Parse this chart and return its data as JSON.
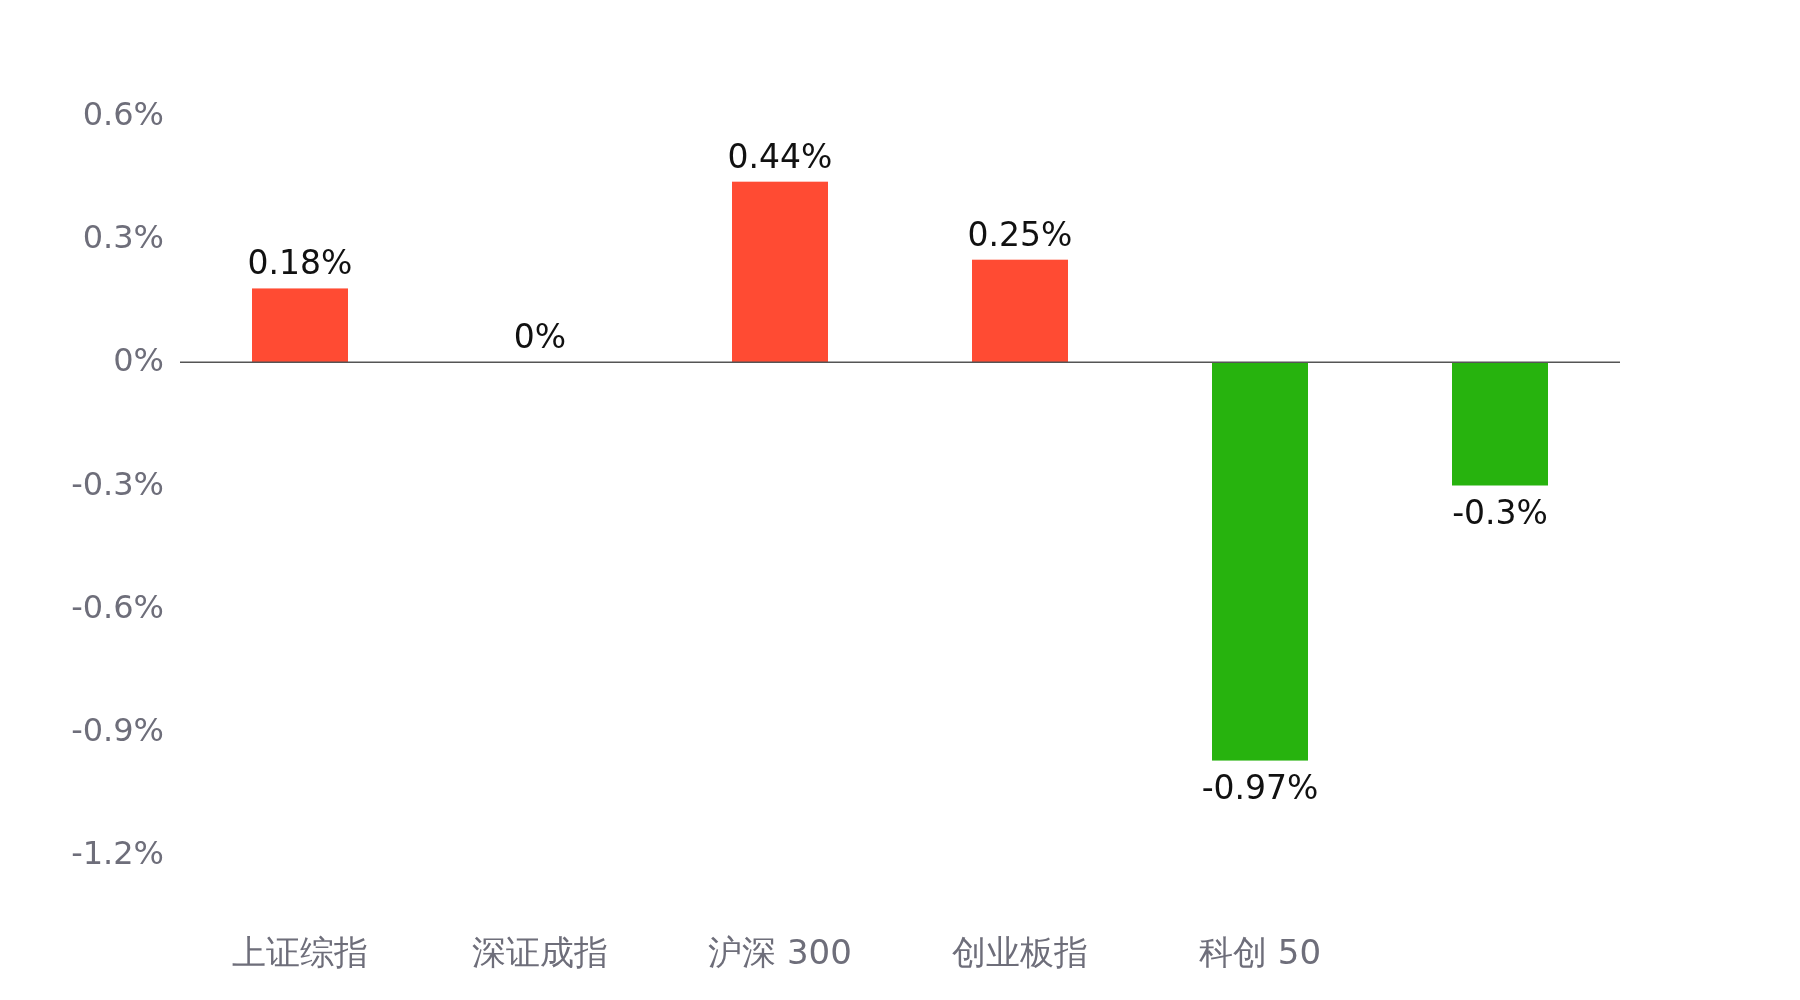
{
  "chart_data": {
    "type": "bar",
    "categories": [
      "上证综指",
      "深证成指",
      "沪深 300",
      "创业板指",
      "科创 50",
      null
    ],
    "values": [
      0.18,
      0,
      0.44,
      0.25,
      -0.97,
      -0.3
    ],
    "colors": [
      "#ff4b33",
      "#ff4b33",
      "#ff4b33",
      "#ff4b33",
      "#27b30e",
      "#27b30e"
    ],
    "value_labels": [
      "0.18%",
      "0%",
      "0.44%",
      "0.25%",
      "-0.97%",
      "-0.3%"
    ],
    "ylim": [
      -1.2,
      0.6
    ],
    "yticks": [
      {
        "value": 0.6,
        "label": "0.6%"
      },
      {
        "value": 0.3,
        "label": "0.3%"
      },
      {
        "value": 0,
        "label": "0%"
      },
      {
        "value": -0.3,
        "label": "-0.3%"
      },
      {
        "value": -0.6,
        "label": "-0.6%"
      },
      {
        "value": -0.9,
        "label": "-0.9%"
      },
      {
        "value": -1.2,
        "label": "-1.2%"
      }
    ]
  }
}
